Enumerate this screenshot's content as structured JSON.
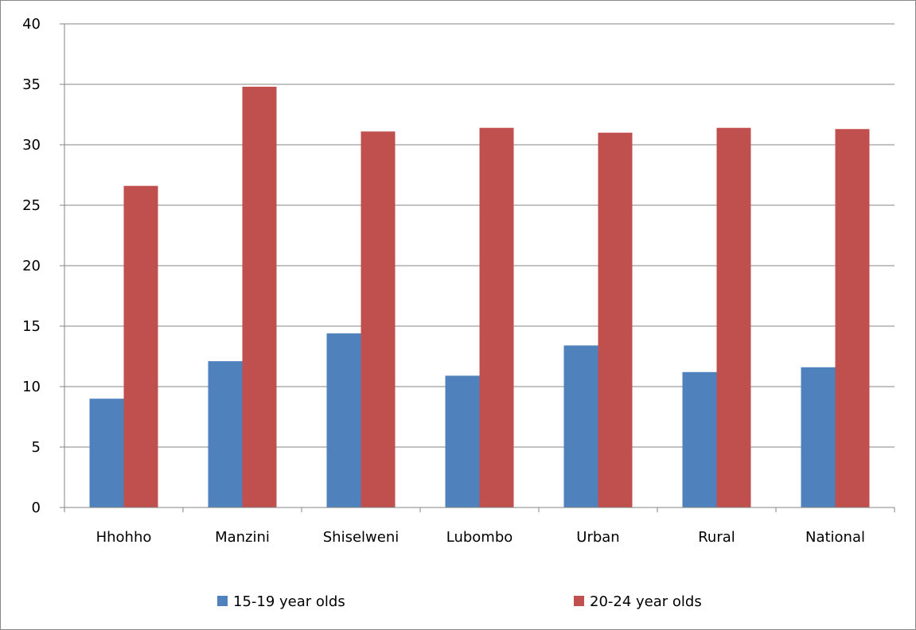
{
  "chart_data": {
    "type": "bar",
    "title": "",
    "xlabel": "",
    "ylabel": "",
    "categories": [
      "Hhohho",
      "Manzini",
      "Shiselweni",
      "Lubombo",
      "Urban",
      "Rural",
      "National"
    ],
    "series": [
      {
        "name": "15-19 year olds",
        "color": "#4F81BD",
        "values": [
          9.0,
          12.1,
          14.4,
          10.9,
          13.4,
          11.2,
          11.6
        ]
      },
      {
        "name": "20-24 year olds",
        "color": "#C0504D",
        "values": [
          26.6,
          34.8,
          31.1,
          31.4,
          31.0,
          31.4,
          31.3
        ]
      }
    ],
    "ylim": [
      0,
      40
    ],
    "yticks": [
      "0",
      "5",
      "10",
      "15",
      "20",
      "25",
      "30",
      "35",
      "40"
    ],
    "grid": true,
    "legend_position": "bottom"
  }
}
